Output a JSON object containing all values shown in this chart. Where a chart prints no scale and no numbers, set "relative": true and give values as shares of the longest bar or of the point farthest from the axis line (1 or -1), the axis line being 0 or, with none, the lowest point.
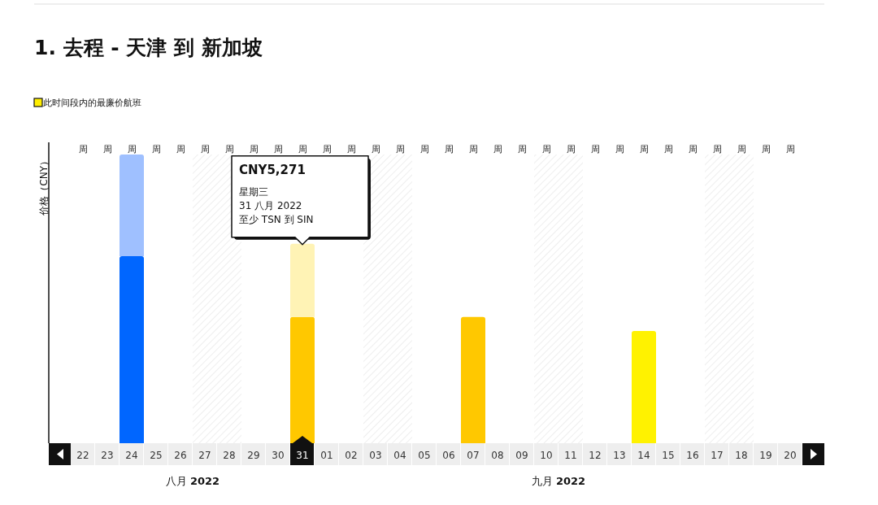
{
  "chart_data": {
    "type": "bar",
    "title": "1. 去程 - 天津 到 新加坡",
    "ylabel": "价格（CNY）",
    "relative": true,
    "stacked": true,
    "legend": "top left",
    "categories": [
      "22",
      "23",
      "24",
      "25",
      "26",
      "27",
      "28",
      "29",
      "30",
      "31",
      "01",
      "02",
      "03",
      "04",
      "05",
      "06",
      "07",
      "08",
      "09",
      "10",
      "11",
      "12",
      "13",
      "14",
      "15",
      "16",
      "17",
      "18",
      "19",
      "20"
    ],
    "series": [
      {
        "name": "此时间段内的最廉价航班",
        "color": "#ffee00",
        "colors": [
          null,
          null,
          "#0066ff",
          null,
          null,
          null,
          null,
          null,
          null,
          "#ffc800",
          null,
          null,
          null,
          null,
          null,
          null,
          "#ffc800",
          null,
          null,
          null,
          null,
          null,
          null,
          "#fff200",
          null,
          null,
          null,
          null,
          null,
          null
        ],
        "values": [
          null,
          null,
          0.648,
          null,
          null,
          null,
          null,
          null,
          null,
          0.437,
          null,
          null,
          null,
          null,
          null,
          null,
          0.437,
          null,
          null,
          null,
          null,
          null,
          null,
          0.389,
          null,
          null,
          null,
          null,
          null,
          null
        ]
      },
      {
        "colors": [
          null,
          null,
          "#9fc0ff",
          null,
          null,
          null,
          null,
          null,
          null,
          "#fff3b5",
          null,
          null,
          null,
          null,
          null,
          null,
          null,
          null,
          null,
          null,
          null,
          null,
          null,
          null,
          null,
          null,
          null,
          null,
          null,
          null
        ],
        "values": [
          null,
          null,
          0.352,
          null,
          null,
          null,
          null,
          null,
          null,
          0.254,
          null,
          null,
          null,
          null,
          null,
          null,
          null,
          null,
          null,
          null,
          null,
          null,
          null,
          null,
          null,
          null,
          null,
          null,
          null,
          null
        ]
      }
    ],
    "bands": [
      {
        "axis": "x",
        "from": "27",
        "to": "28",
        "color": "#dddddd"
      },
      {
        "axis": "x",
        "from": "03",
        "to": "04",
        "color": "#dddddd"
      },
      {
        "axis": "x",
        "from": "10",
        "to": "11",
        "color": "#dddddd"
      },
      {
        "axis": "x",
        "from": "17",
        "to": "18",
        "color": "#dddddd"
      }
    ],
    "annotations": [
      {
        "text": "CNY5,271\n星期三\n31 八月 2022\n至少 TSN 到 SIN",
        "x": "31",
        "y": 0.691
      },
      "八月 2022",
      "九月 2022",
      "周",
      "周",
      "周",
      "周",
      "周",
      "周",
      "周",
      "周",
      "周",
      "周",
      "周",
      "周",
      "周",
      "周",
      "周",
      "周",
      "周",
      "周",
      "周",
      "周",
      "周",
      "周",
      "周",
      "周",
      "周",
      "周",
      "周",
      "周",
      "周",
      "周"
    ]
  }
}
